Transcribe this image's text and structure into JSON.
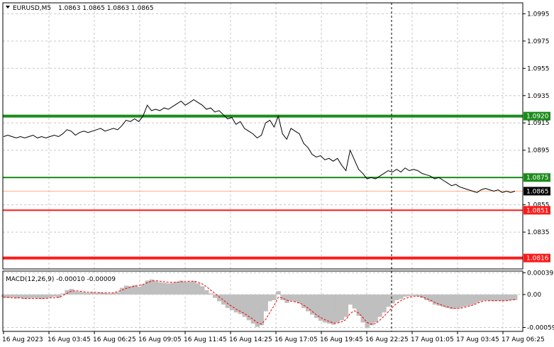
{
  "window": {
    "symbol_label": "EURUSD,M5",
    "ohlc_label": "1.0863 1.0865 1.0863 1.0865",
    "macd_label": "MACD(12,26,9) -0.00010 -0.00009"
  },
  "colors": {
    "price_line": "#000000",
    "support_resistance_green": "#1a8c1a",
    "support_red": "#ff1a1a",
    "current_price_line": "#ffb08a",
    "histogram": "#bfbfbf",
    "signal_line": "#ff0000",
    "price_tag_text": "#ffffff"
  },
  "chart_data": [
    {
      "type": "line",
      "pane": "price",
      "ylim": [
        1.0808,
        1.1003
      ],
      "y_ticks": [
        "1.0995",
        "1.0975",
        "1.0955",
        "1.0935",
        "1.0915",
        "1.0895",
        "1.0855",
        "1.0835"
      ],
      "x_ticks": [
        "16 Aug 2023",
        "16 Aug 03:45",
        "16 Aug 06:25",
        "16 Aug 09:05",
        "16 Aug 11:45",
        "16 Aug 14:25",
        "16 Aug 17:05",
        "16 Aug 19:45",
        "16 Aug 22:25",
        "17 Aug 01:05",
        "17 Aug 03:45",
        "17 Aug 06:25"
      ],
      "series": [
        {
          "x": [
            0,
            6,
            12,
            18,
            24,
            30,
            36,
            42,
            48,
            54,
            60,
            66,
            72,
            78,
            84,
            90,
            96,
            102,
            108,
            114,
            120,
            126,
            132,
            138,
            144,
            150,
            156,
            162,
            168,
            174,
            180,
            186,
            192,
            198,
            204,
            210,
            216,
            222,
            228,
            234,
            240,
            246,
            252,
            258,
            264,
            270,
            276,
            282,
            288,
            294,
            300,
            306,
            312,
            318,
            324,
            330,
            336,
            342,
            348,
            354,
            360,
            366,
            372,
            378,
            384,
            390,
            396,
            402,
            408,
            414,
            420,
            426,
            432,
            438,
            444,
            450,
            456,
            462,
            468,
            474,
            480,
            486,
            492,
            498,
            504,
            510,
            516,
            522,
            528,
            534,
            540,
            546,
            552,
            558,
            564,
            570,
            576,
            582,
            588,
            594,
            600,
            606,
            612,
            618,
            624,
            630,
            636,
            642,
            648,
            654,
            660,
            666,
            672,
            678,
            684,
            690,
            696,
            702,
            708,
            714,
            720,
            726
          ],
          "values": [
            1.0905,
            1.0906,
            1.0905,
            1.0904,
            1.0905,
            1.0904,
            1.0905,
            1.0906,
            1.0904,
            1.0905,
            1.0904,
            1.0905,
            1.0906,
            1.0905,
            1.0907,
            1.091,
            1.0909,
            1.0906,
            1.0908,
            1.0909,
            1.0908,
            1.0909,
            1.091,
            1.0911,
            1.0909,
            1.091,
            1.0911,
            1.091,
            1.0913,
            1.0917,
            1.0916,
            1.0918,
            1.0916,
            1.092,
            1.0928,
            1.0924,
            1.0925,
            1.0924,
            1.0926,
            1.0925,
            1.0927,
            1.0929,
            1.0931,
            1.0928,
            1.093,
            1.0932,
            1.093,
            1.0928,
            1.0925,
            1.0926,
            1.0923,
            1.0924,
            1.0921,
            1.0918,
            1.0919,
            1.0914,
            1.0916,
            1.0911,
            1.0909,
            1.0907,
            1.0904,
            1.0906,
            1.0915,
            1.0917,
            1.0912,
            1.092,
            1.0907,
            1.0903,
            1.0911,
            1.0909,
            1.0907,
            1.09,
            1.0897,
            1.0892,
            1.089,
            1.0891,
            1.0888,
            1.0889,
            1.0887,
            1.0889,
            1.0884,
            1.088,
            1.0895,
            1.0888,
            1.0881,
            1.0878,
            1.0874,
            1.0875,
            1.0874,
            1.0876,
            1.0878,
            1.088,
            1.0879,
            1.0881,
            1.0879,
            1.0882,
            1.088,
            1.0881,
            1.088,
            1.0878,
            1.0877,
            1.0876,
            1.0874,
            1.0875,
            1.0873,
            1.0871,
            1.0869,
            1.087,
            1.0868,
            1.0867,
            1.0866,
            1.0865,
            1.0864,
            1.0866,
            1.0867,
            1.0866,
            1.0865,
            1.0866,
            1.0864,
            1.0865,
            1.0864,
            1.0865
          ]
        }
      ],
      "levels": [
        {
          "value": 1.092,
          "label": "1.0920",
          "color": "#1a8c1a",
          "thick": true
        },
        {
          "value": 1.0875,
          "label": "1.0875",
          "color": "#1a8c1a",
          "thick": false
        },
        {
          "value": 1.0851,
          "label": "1.0851",
          "color": "#ff1a1a",
          "thick": false
        },
        {
          "value": 1.0816,
          "label": "1.0816",
          "color": "#ff1a1a",
          "thick": true
        }
      ],
      "current_price": {
        "value": 1.0865,
        "label": "1.0865"
      },
      "vertical_marker_x": 552
    },
    {
      "type": "bar",
      "pane": "macd",
      "ylim": [
        -0.00066,
        0.00042
      ],
      "y_ticks": [
        "0.00039",
        "0.00",
        "-0.00059"
      ],
      "series": [
        {
          "name": "MACD",
          "values": [
            -5e-05,
            -6e-05,
            -5e-05,
            -7e-05,
            -6e-05,
            -8e-05,
            -7e-05,
            -6e-05,
            -7e-05,
            -8e-05,
            -7e-05,
            -5e-05,
            -4e-05,
            -6e-05,
            2e-05,
            8e-05,
            0.0001,
            6e-05,
            5e-05,
            4e-05,
            3e-05,
            4e-05,
            3e-05,
            4e-05,
            3e-05,
            2e-05,
            3e-05,
            4e-05,
            0.00012,
            0.00016,
            0.00015,
            0.00017,
            0.00014,
            0.00018,
            0.00025,
            0.00027,
            0.00024,
            0.00022,
            0.00021,
            0.0002,
            0.00021,
            0.00023,
            0.00025,
            0.00022,
            0.00023,
            0.00024,
            0.0002,
            0.00015,
            8e-05,
            2e-05,
            -6e-05,
            -0.00012,
            -0.00018,
            -0.00024,
            -0.00028,
            -0.00032,
            -0.00035,
            -0.0004,
            -0.00046,
            -0.00052,
            -0.00058,
            -0.00055,
            -0.0003,
            -0.00012,
            -0.0001,
            6e-05,
            -0.0001,
            -0.00015,
            -0.00011,
            -0.00013,
            -0.00016,
            -0.00024,
            -0.0003,
            -0.00036,
            -0.00042,
            -0.00047,
            -0.0005,
            -0.00052,
            -0.00054,
            -0.0005,
            -0.00046,
            -0.0004,
            -0.00018,
            -0.00025,
            -0.00038,
            -0.0005,
            -0.0006,
            -0.00055,
            -0.0005,
            -0.0004,
            -0.00032,
            -0.00022,
            -0.00016,
            -0.0001,
            -8e-05,
            -4e-05,
            -3e-05,
            -2e-05,
            -3e-05,
            -6e-05,
            -0.0001,
            -0.00013,
            -0.00018,
            -0.0002,
            -0.00022,
            -0.00024,
            -0.00026,
            -0.00025,
            -0.00024,
            -0.00022,
            -0.0002,
            -0.00018,
            -0.00015,
            -0.00012,
            -0.0001,
            -0.00011,
            -0.00012,
            -0.00011,
            -0.00012,
            -0.00011,
            -0.0001,
            -0.0001
          ]
        },
        {
          "name": "Signal",
          "values": [
            -5e-05,
            -5e-05,
            -6e-05,
            -6e-05,
            -6e-05,
            -7e-05,
            -7e-05,
            -7e-05,
            -7e-05,
            -7e-05,
            -7e-05,
            -6e-05,
            -6e-05,
            -5e-05,
            -2e-05,
            2e-05,
            6e-05,
            7e-05,
            6e-05,
            5e-05,
            4e-05,
            4e-05,
            4e-05,
            3e-05,
            3e-05,
            3e-05,
            3e-05,
            5e-05,
            8e-05,
            0.00011,
            0.00013,
            0.00015,
            0.00016,
            0.00018,
            0.00021,
            0.00024,
            0.00025,
            0.00024,
            0.00023,
            0.00022,
            0.00022,
            0.00022,
            0.00023,
            0.00023,
            0.00024,
            0.00024,
            0.00022,
            0.00019,
            0.00014,
            8e-05,
            2e-05,
            -4e-05,
            -0.0001,
            -0.00016,
            -0.00021,
            -0.00026,
            -0.0003,
            -0.00034,
            -0.00039,
            -0.00044,
            -0.0005,
            -0.00053,
            -0.00045,
            -0.00032,
            -0.0002,
            -5e-05,
            -6e-05,
            -0.0001,
            -0.00012,
            -0.00013,
            -0.00015,
            -0.00019,
            -0.00024,
            -0.0003,
            -0.00036,
            -0.00041,
            -0.00045,
            -0.00048,
            -0.00051,
            -0.00051,
            -0.00049,
            -0.00045,
            -0.00034,
            -0.00029,
            -0.00033,
            -0.00041,
            -0.0005,
            -0.00053,
            -0.00052,
            -0.00046,
            -0.00039,
            -0.00031,
            -0.00023,
            -0.00016,
            -0.00011,
            -7e-05,
            -5e-05,
            -3e-05,
            -3e-05,
            -4e-05,
            -7e-05,
            -0.0001,
            -0.00014,
            -0.00017,
            -0.0002,
            -0.00022,
            -0.00024,
            -0.00025,
            -0.00025,
            -0.00023,
            -0.00021,
            -0.00019,
            -0.00016,
            -0.00013,
            -0.00011,
            -0.00011,
            -0.00011,
            -0.00011,
            -0.00011,
            -0.00011,
            -0.0001,
            -9e-05
          ]
        }
      ]
    }
  ]
}
